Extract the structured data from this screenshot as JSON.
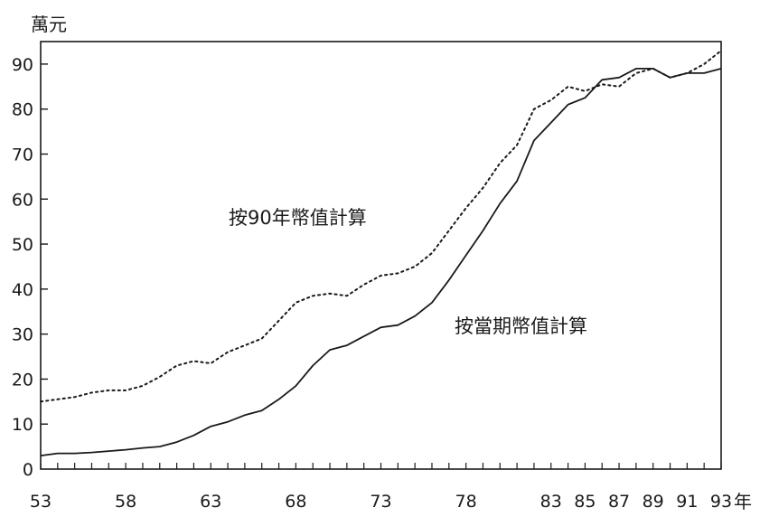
{
  "chart_data": {
    "type": "line",
    "y_unit": "萬元",
    "x_unit": "年",
    "xlim": [
      53,
      93
    ],
    "ylim": [
      0,
      95
    ],
    "y_ticks": [
      0,
      10,
      20,
      30,
      40,
      50,
      60,
      70,
      80,
      90
    ],
    "x_tick_labels": [
      {
        "x": 53,
        "label": "53"
      },
      {
        "x": 58,
        "label": "58"
      },
      {
        "x": 63,
        "label": "63"
      },
      {
        "x": 68,
        "label": "68"
      },
      {
        "x": 73,
        "label": "73"
      },
      {
        "x": 78,
        "label": "78"
      },
      {
        "x": 83,
        "label": "83"
      },
      {
        "x": 85,
        "label": "85"
      },
      {
        "x": 87,
        "label": "87"
      },
      {
        "x": 89,
        "label": "89"
      },
      {
        "x": 91,
        "label": "91"
      },
      {
        "x": 93,
        "label": "93"
      }
    ],
    "x": [
      53,
      54,
      55,
      56,
      57,
      58,
      59,
      60,
      61,
      62,
      63,
      64,
      65,
      66,
      67,
      68,
      69,
      70,
      71,
      72,
      73,
      74,
      75,
      76,
      77,
      78,
      79,
      80,
      81,
      82,
      83,
      84,
      85,
      86,
      87,
      88,
      89,
      90,
      91,
      92,
      93
    ],
    "series": [
      {
        "name": "按90年幣值計算",
        "style": "dotted",
        "values": [
          15,
          15.5,
          16,
          17,
          17.5,
          17.5,
          18.5,
          20.5,
          23,
          24,
          23.5,
          26,
          27.5,
          29,
          33,
          37,
          38.5,
          39,
          38.5,
          41,
          43,
          43.5,
          45,
          48,
          53,
          58,
          62.5,
          68,
          72,
          80,
          82,
          85,
          84,
          85.5,
          85,
          88,
          89,
          87,
          88,
          90,
          93
        ]
      },
      {
        "name": "按當期幣值計算",
        "style": "solid",
        "values": [
          3,
          3.5,
          3.5,
          3.7,
          4,
          4.3,
          4.7,
          5,
          6,
          7.5,
          9.5,
          10.5,
          12,
          13,
          15.5,
          18.5,
          23,
          26.5,
          27.5,
          29.5,
          31.5,
          32,
          34,
          37,
          42,
          47.5,
          53,
          59,
          64,
          73,
          77,
          81,
          82.5,
          86.5,
          87,
          89,
          89,
          87,
          88,
          88,
          89
        ]
      }
    ],
    "annotations": [
      "按90年幣值計算",
      "按當期幣值計算"
    ],
    "grid": false,
    "legend": "none",
    "colors": {
      "line": "#1a1a1a",
      "axis": "#1a1a1a"
    }
  }
}
